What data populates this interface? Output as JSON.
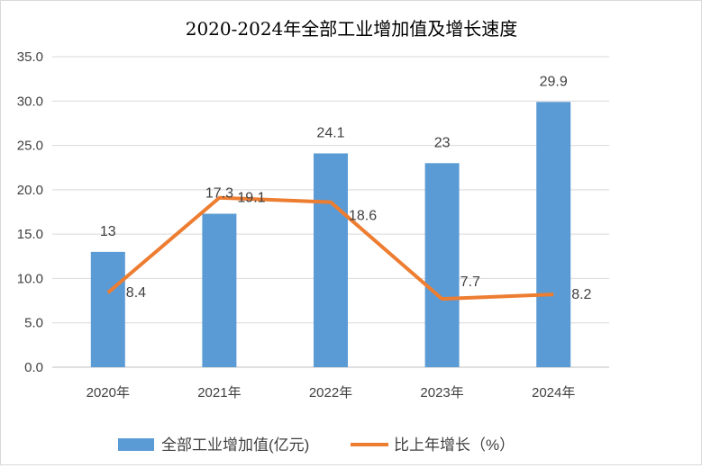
{
  "chart_data": {
    "type": "bar+line",
    "title": "2020-2024年全部工业增加值及增长速度",
    "categories": [
      "2020年",
      "2021年",
      "2022年",
      "2023年",
      "2024年"
    ],
    "series": [
      {
        "name": "全部工业增加值(亿元)",
        "type": "bar",
        "color": "#5b9bd5",
        "values": [
          13.0,
          17.3,
          24.1,
          23.0,
          29.9
        ]
      },
      {
        "name": "比上年增长（%）",
        "type": "line",
        "color": "#ed7d31",
        "values": [
          8.4,
          19.1,
          18.6,
          7.7,
          8.2
        ]
      }
    ],
    "ylim": [
      0,
      35
    ],
    "yticks": [
      "0.0",
      "5.0",
      "10.0",
      "15.0",
      "20.0",
      "25.0",
      "30.0",
      "35.0"
    ],
    "grid": true,
    "legend": "bottom"
  }
}
